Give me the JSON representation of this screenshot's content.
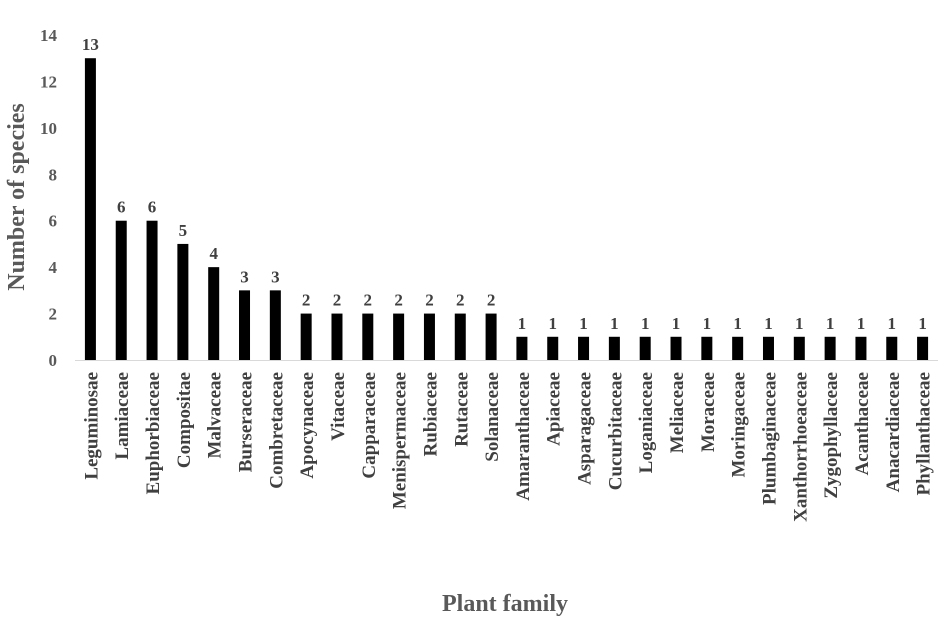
{
  "chart_data": {
    "type": "bar",
    "xlabel": "Plant family",
    "ylabel": "Number of species",
    "ylim": [
      0,
      14
    ],
    "yticks": [
      0,
      2,
      4,
      6,
      8,
      10,
      12,
      14
    ],
    "grid": false,
    "legend": "none",
    "bar_color": "#000000",
    "categories": [
      "Leguminosae",
      "Lamiaceae",
      "Euphorbiaceae",
      "Compositae",
      "Malvaceae",
      "Burseraceae",
      "Combretaceae",
      "Apocynaceae",
      "Vitaceae",
      "Capparaceae",
      "Menispermaceae",
      "Rubiaceae",
      "Rutaceae",
      "Solanaceae",
      "Amaranthaceae",
      "Apiaceae",
      "Asparagaceae",
      "Cucurbitaceae",
      "Loganiaceae",
      "Meliaceae",
      "Moraceae",
      "Moringaceae",
      "Plumbaginaceae",
      "Xanthorrhoeaceae",
      "Zygophyllaceae",
      "Acanthaceae",
      "Anacardiaceae",
      "Phyllanthaceae"
    ],
    "values": [
      13,
      6,
      6,
      5,
      4,
      3,
      3,
      2,
      2,
      2,
      2,
      2,
      2,
      2,
      1,
      1,
      1,
      1,
      1,
      1,
      1,
      1,
      1,
      1,
      1,
      1,
      1,
      1
    ]
  }
}
